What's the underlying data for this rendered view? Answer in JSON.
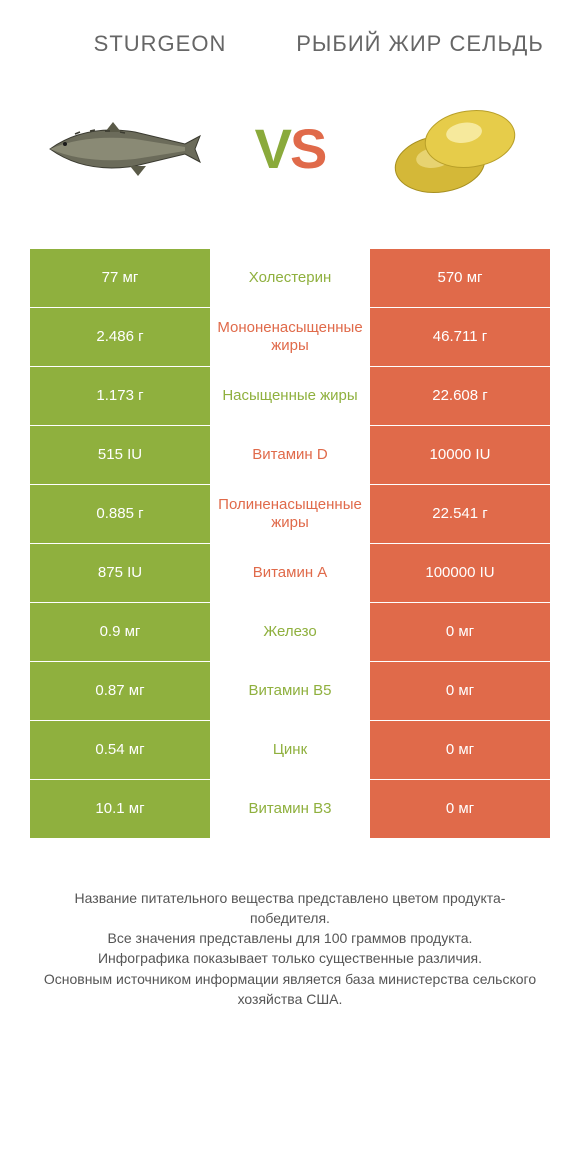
{
  "header": {
    "left_title": "STURGEON",
    "right_title": "РЫБИЙ ЖИР СЕЛЬДЬ",
    "vs_v": "V",
    "vs_s": "S"
  },
  "colors": {
    "left": "#8fb03e",
    "right": "#e06a4a",
    "mid_green_text": "#8fb03e",
    "mid_red_text": "#e06a4a",
    "footer_text": "#555555",
    "background": "#ffffff"
  },
  "table": {
    "rows": [
      {
        "left": "77 мг",
        "label": "Холестерин",
        "right": "570 мг",
        "winner": "left"
      },
      {
        "left": "2.486 г",
        "label": "Мононенасыщенные жиры",
        "right": "46.711 г",
        "winner": "right"
      },
      {
        "left": "1.173 г",
        "label": "Насыщенные жиры",
        "right": "22.608 г",
        "winner": "left"
      },
      {
        "left": "515 IU",
        "label": "Витамин D",
        "right": "10000 IU",
        "winner": "right"
      },
      {
        "left": "0.885 г",
        "label": "Полиненасыщенные жиры",
        "right": "22.541 г",
        "winner": "right"
      },
      {
        "left": "875 IU",
        "label": "Витамин A",
        "right": "100000 IU",
        "winner": "right"
      },
      {
        "left": "0.9 мг",
        "label": "Железо",
        "right": "0 мг",
        "winner": "left"
      },
      {
        "left": "0.87 мг",
        "label": "Витамин B5",
        "right": "0 мг",
        "winner": "left"
      },
      {
        "left": "0.54 мг",
        "label": "Цинк",
        "right": "0 мг",
        "winner": "left"
      },
      {
        "left": "10.1 мг",
        "label": "Витамин B3",
        "right": "0 мг",
        "winner": "left"
      }
    ]
  },
  "footer": {
    "lines": [
      "Название питательного вещества представлено цветом продукта-победителя.",
      "Все значения представлены для 100 граммов продукта.",
      "Инфографика показывает только существенные различия.",
      "Основным источником информации является база министерства сельского хозяйства США."
    ]
  },
  "image_semantics": {
    "left": "sturgeon-fish",
    "right": "fish-oil-capsules"
  },
  "typography": {
    "title_fontsize": 22,
    "vs_fontsize": 56,
    "cell_fontsize": 15,
    "footer_fontsize": 14
  }
}
